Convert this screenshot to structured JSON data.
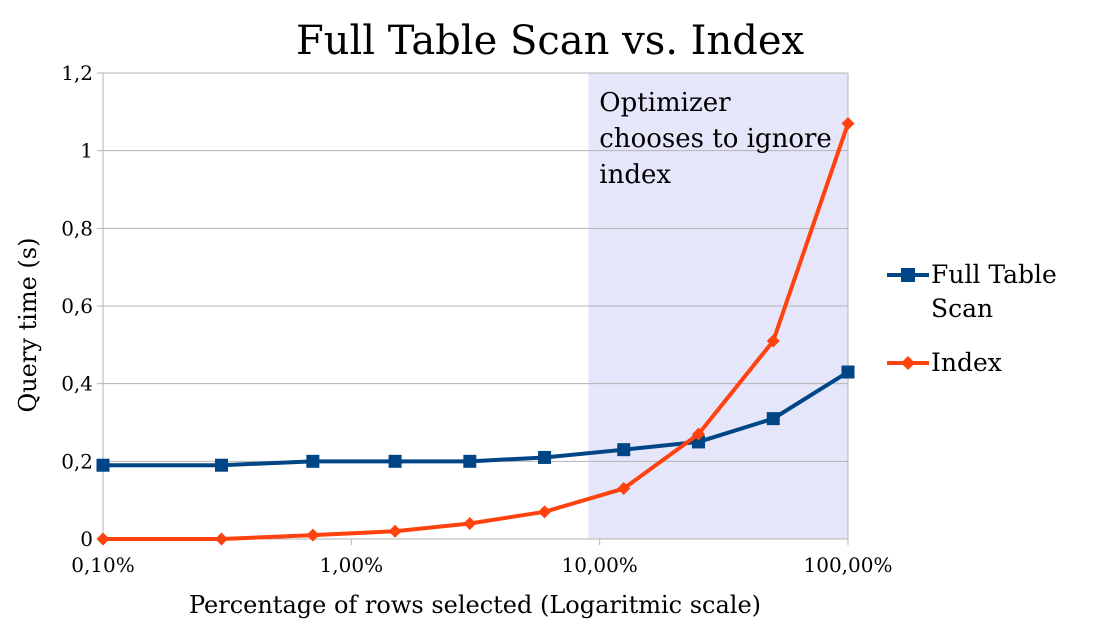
{
  "chart_data": {
    "type": "line",
    "title": "Full Table Scan vs. Index",
    "xlabel": "Percentage of rows selected (Logaritmic scale)",
    "ylabel": "Query time (s)",
    "x_scale": "log",
    "xlim": [
      0.1,
      100
    ],
    "x_ticks": [
      0.1,
      1,
      10,
      100
    ],
    "x_tick_labels": [
      "0,10%",
      "1,00%",
      "10,00%",
      "100,00%"
    ],
    "ylim": [
      0,
      1.2
    ],
    "y_ticks": [
      0,
      0.2,
      0.4,
      0.6,
      0.8,
      1.0,
      1.2
    ],
    "y_tick_labels": [
      "0",
      "0,2",
      "0,4",
      "0,6",
      "0,8",
      "1",
      "1,2"
    ],
    "grid": "horizontal",
    "legend_position": "right",
    "x": [
      0.1,
      0.3,
      0.7,
      1.5,
      3,
      6,
      12.5,
      25,
      50,
      100
    ],
    "series": [
      {
        "name": "Full Table Scan",
        "color": "#004586",
        "marker": "square",
        "values": [
          0.19,
          0.19,
          0.2,
          0.2,
          0.2,
          0.21,
          0.23,
          0.25,
          0.31,
          0.43
        ]
      },
      {
        "name": "Index",
        "color": "#ff420e",
        "marker": "diamond",
        "values": [
          0.0,
          0.0,
          0.01,
          0.02,
          0.04,
          0.07,
          0.13,
          0.27,
          0.51,
          1.07
        ]
      }
    ],
    "highlight_region": {
      "x_from": 9,
      "x_to": 100,
      "color": "#e6e6fa",
      "annotation": "Optimizer chooses to ignore index",
      "annotation_lines": [
        "Optimizer",
        "chooses to ignore",
        "index"
      ]
    }
  }
}
